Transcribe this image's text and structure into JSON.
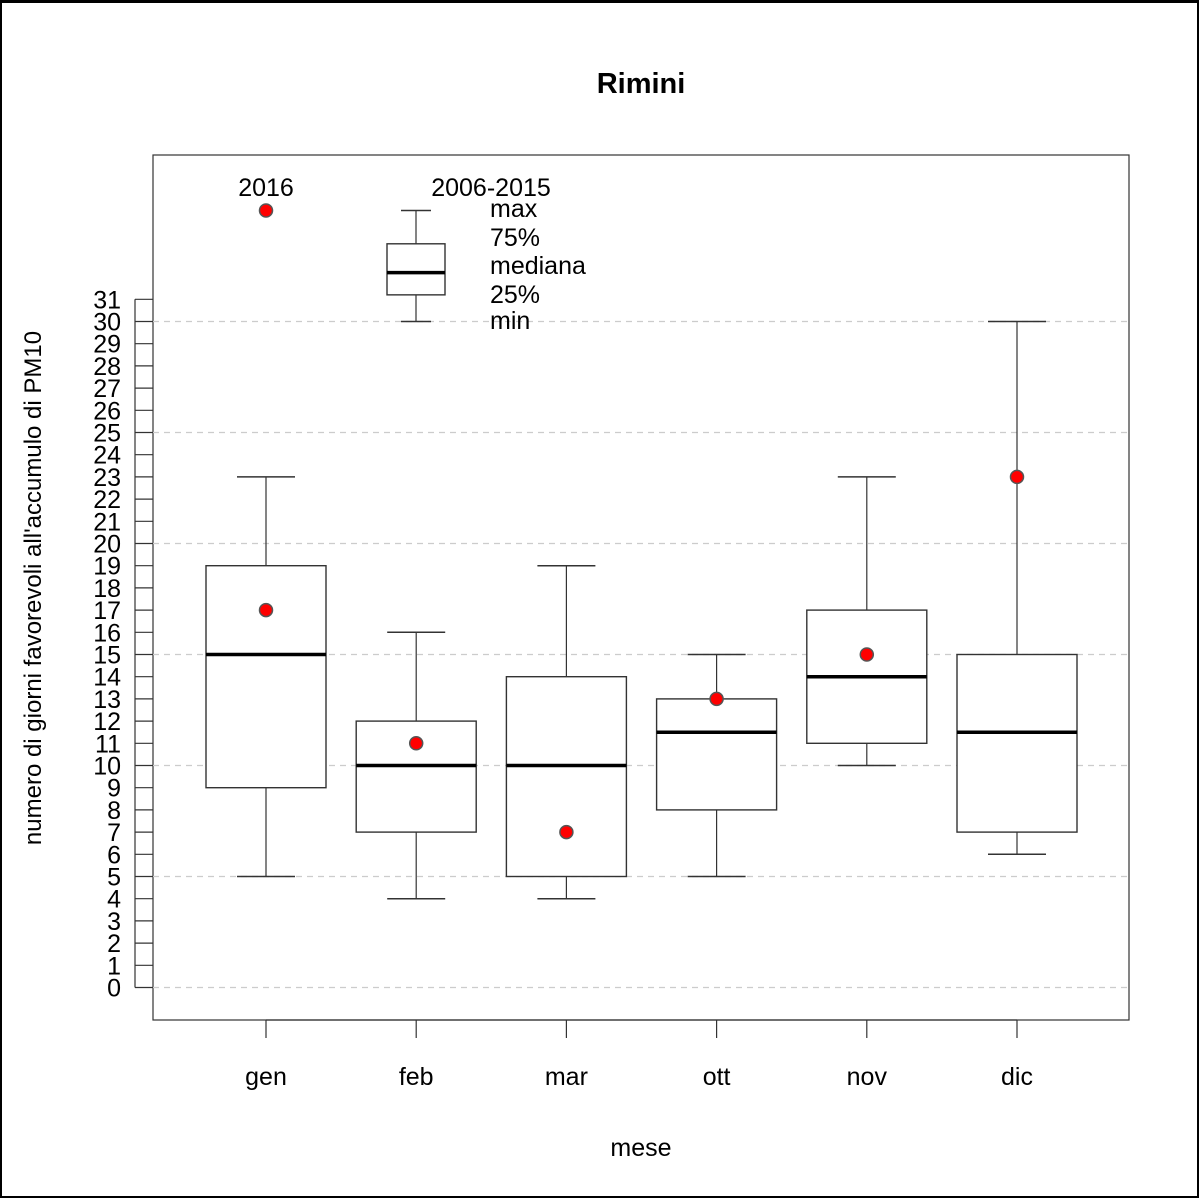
{
  "chart_data": {
    "type": "box",
    "title": "Rimini",
    "xlabel": "mese",
    "ylabel": "numero di giorni favorevoli all'accumulo di PM10",
    "categories": [
      "gen",
      "feb",
      "mar",
      "ott",
      "nov",
      "dic"
    ],
    "y_range": [
      -1.5,
      37.5
    ],
    "y_ticks": [
      0,
      1,
      2,
      3,
      4,
      5,
      6,
      7,
      8,
      9,
      10,
      11,
      12,
      13,
      14,
      15,
      16,
      17,
      18,
      19,
      20,
      21,
      22,
      23,
      24,
      25,
      26,
      27,
      28,
      29,
      30,
      31
    ],
    "y_gridlines": [
      0,
      5,
      10,
      15,
      20,
      25,
      30
    ],
    "grid": "horizontal dashed",
    "series": [
      {
        "name": "2006-2015",
        "boxes": [
          {
            "min": 5,
            "q1": 9,
            "median": 15,
            "q3": 19,
            "max": 23
          },
          {
            "min": 4,
            "q1": 7,
            "median": 10,
            "q3": 12,
            "max": 16
          },
          {
            "min": 4,
            "q1": 5,
            "median": 10,
            "q3": 14,
            "max": 19
          },
          {
            "min": 5,
            "q1": 8,
            "median": 11.5,
            "q3": 13,
            "max": 15
          },
          {
            "min": 10,
            "q1": 11,
            "median": 14,
            "q3": 17,
            "max": 23
          },
          {
            "min": 6,
            "q1": 7,
            "median": 11.5,
            "q3": 15,
            "max": 30
          }
        ]
      },
      {
        "name": "2016",
        "values": [
          17,
          11,
          7,
          13,
          15,
          23
        ],
        "color": "#ff0000"
      }
    ],
    "legend": {
      "placement": "top",
      "point_label": "2016",
      "box_label": "2006-2015",
      "item_labels": [
        "max",
        "75%",
        "mediana",
        "25%",
        "min"
      ],
      "example_point_value": 35,
      "example_box": {
        "min": 30,
        "q1": 31.2,
        "median": 32.2,
        "q3": 33.5,
        "max": 35
      }
    }
  }
}
